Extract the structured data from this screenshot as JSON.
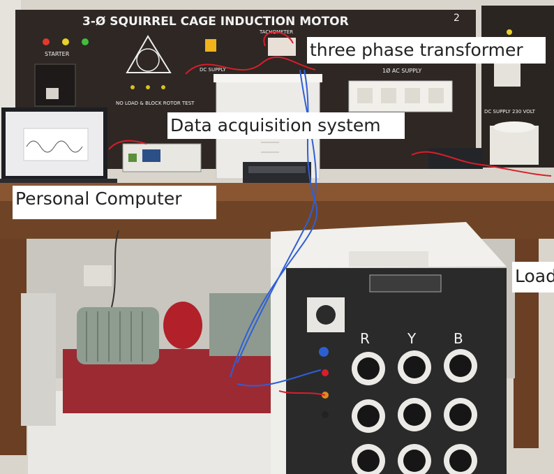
{
  "panel": {
    "title": "3-Ø SQUIRREL CAGE INDUCTION MOTOR",
    "panel_number": "2",
    "starter": "STARTER",
    "test": "NO LOAD & BLOCK ROTOR TEST",
    "tachometer": "TACHOMETER",
    "dc_supply": "DC SUPPLY",
    "ac_supply": "1Ø AC SUPPLY",
    "dc_supply_volt": "DC SUPPLY 230 VOLT"
  },
  "load_bank": {
    "phase_r": "R",
    "phase_y": "Y",
    "phase_b": "B"
  },
  "labels": {
    "transformer": "three phase transformer",
    "daq": "Data acquisition system",
    "pc": "Personal Computer",
    "load": "Load"
  },
  "colors": {
    "panel": "#2e2724",
    "bench": "#7a4a2c",
    "motor": "#8f9c90",
    "coupling": "#b2202a",
    "base": "#9c2a33",
    "load_cabinet": "#2a2a2a",
    "wire_red": "#d91e2b",
    "wire_blue": "#2f5fd6"
  }
}
